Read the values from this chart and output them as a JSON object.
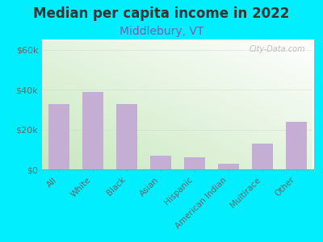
{
  "title": "Median per capita income in 2022",
  "subtitle": "Middlebury, VT",
  "categories": [
    "All",
    "White",
    "Black",
    "Asian",
    "Hispanic",
    "American Indian",
    "Multirace",
    "Other"
  ],
  "values": [
    33000,
    39000,
    33000,
    7000,
    6000,
    3000,
    13000,
    24000
  ],
  "bar_color": "#c4aed4",
  "background_outer": "#00eeff",
  "title_color": "#333333",
  "subtitle_color": "#8855aa",
  "tick_label_color": "#666666",
  "ytick_labels": [
    "$0",
    "$20k",
    "$40k",
    "$60k"
  ],
  "ytick_values": [
    0,
    20000,
    40000,
    60000
  ],
  "ylim": [
    0,
    65000
  ],
  "watermark": "City-Data.com",
  "title_fontsize": 12,
  "subtitle_fontsize": 10,
  "grad_colors": [
    "#c8e8c0",
    "#f0faf0",
    "#ffffff"
  ],
  "border_color": "#ffffff"
}
